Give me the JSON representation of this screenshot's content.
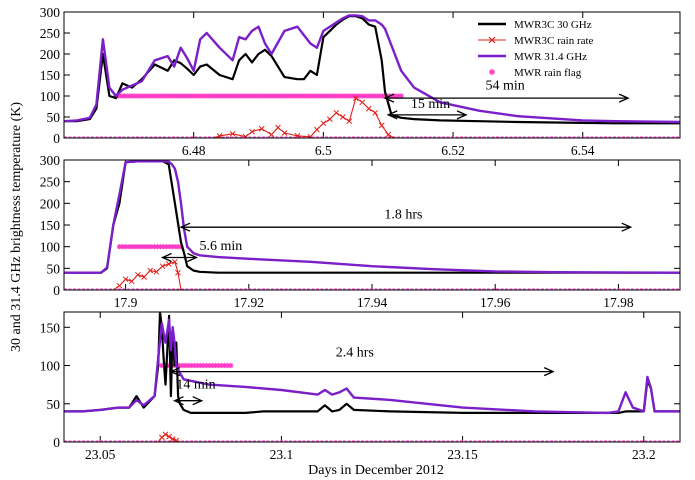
{
  "chart_data": {
    "type": "line",
    "ylabel": "30 and 31.4 GHz brightness temperature (K)",
    "xlabel": "Days in December 2012",
    "legend": {
      "placement": "top-right of top panel",
      "entries": [
        {
          "label": "MWR3C 30 GHz",
          "color": "#000000",
          "style": "line"
        },
        {
          "label": "MWR3C rain rate",
          "color": "#e0201a",
          "style": "x-marker line"
        },
        {
          "label": "MWR 31.4 GHz",
          "color": "#7a1fc9",
          "style": "line"
        },
        {
          "label": "MWR rain flag",
          "color": "#ff3cc8",
          "style": "star marker"
        }
      ]
    },
    "panels": [
      {
        "xlim": [
          6.46,
          6.555
        ],
        "ylim": [
          0,
          300
        ],
        "xticks": [
          "6.48",
          "6.5",
          "6.52",
          "6.54"
        ],
        "xtick_values": [
          6.48,
          6.5,
          6.52,
          6.54
        ],
        "yticks": [
          "0",
          "50",
          "100",
          "150",
          "200",
          "250",
          "300"
        ],
        "ytick_values": [
          0,
          50,
          100,
          150,
          200,
          250,
          300
        ],
        "series": [
          {
            "name": "MWR3C 30 GHz",
            "color": "#000000",
            "x": [
              6.46,
              6.462,
              6.464,
              6.465,
              6.466,
              6.467,
              6.468,
              6.469,
              6.4705,
              6.472,
              6.474,
              6.476,
              6.477,
              6.478,
              6.479,
              6.48,
              6.481,
              6.482,
              6.484,
              6.486,
              6.487,
              6.488,
              6.489,
              6.49,
              6.491,
              6.492,
              6.494,
              6.496,
              6.497,
              6.498,
              6.499,
              6.5,
              6.501,
              6.502,
              6.503,
              6.504,
              6.505,
              6.506,
              6.507,
              6.508,
              6.509,
              6.5095,
              6.5105,
              6.512,
              6.514,
              6.518,
              6.524,
              6.53,
              6.54,
              6.545,
              6.555
            ],
            "y": [
              40,
              40,
              45,
              70,
              200,
              100,
              95,
              130,
              120,
              140,
              175,
              160,
              185,
              178,
              165,
              150,
              170,
              175,
              150,
              140,
              185,
              200,
              180,
              200,
              210,
              195,
              145,
              140,
              140,
              160,
              150,
              240,
              255,
              270,
              282,
              290,
              290,
              285,
              270,
              265,
              185,
              110,
              55,
              48,
              45,
              42,
              40,
              38,
              36,
              35,
              35
            ]
          },
          {
            "name": "MWR 31.4 GHz",
            "color": "#7a1fc9",
            "x": [
              6.46,
              6.462,
              6.464,
              6.465,
              6.466,
              6.467,
              6.468,
              6.469,
              6.4705,
              6.472,
              6.474,
              6.476,
              6.477,
              6.478,
              6.479,
              6.48,
              6.481,
              6.482,
              6.484,
              6.486,
              6.487,
              6.488,
              6.489,
              6.49,
              6.491,
              6.492,
              6.494,
              6.496,
              6.497,
              6.498,
              6.499,
              6.5,
              6.501,
              6.502,
              6.503,
              6.504,
              6.505,
              6.506,
              6.507,
              6.508,
              6.509,
              6.5095,
              6.5105,
              6.512,
              6.514,
              6.518,
              6.524,
              6.53,
              6.54,
              6.545,
              6.555
            ],
            "y": [
              40,
              42,
              48,
              80,
              235,
              120,
              100,
              115,
              125,
              135,
              185,
              195,
              170,
              215,
              190,
              160,
              235,
              250,
              215,
              185,
              240,
              235,
              255,
              265,
              225,
              200,
              255,
              265,
              245,
              225,
              215,
              255,
              265,
              275,
              285,
              292,
              292,
              290,
              280,
              280,
              270,
              260,
              220,
              160,
              120,
              85,
              65,
              52,
              42,
              40,
              38
            ]
          },
          {
            "name": "MWR3C rain rate",
            "color": "#e0201a",
            "x": [
              6.46,
              6.483,
              6.484,
              6.486,
              6.488,
              6.489,
              6.4905,
              6.492,
              6.493,
              6.494,
              6.496,
              6.498,
              6.499,
              6.5,
              6.501,
              6.502,
              6.503,
              6.504,
              6.505,
              6.506,
              6.507,
              6.508,
              6.509,
              6.51,
              6.511,
              6.555
            ],
            "y": [
              0,
              0,
              5,
              10,
              3,
              15,
              22,
              8,
              25,
              12,
              5,
              3,
              20,
              35,
              45,
              60,
              50,
              40,
              95,
              85,
              70,
              60,
              30,
              8,
              0,
              0
            ]
          }
        ],
        "rain_flag": {
          "name": "MWR rain flag",
          "color": "#ff3cc8",
          "x_range": [
            6.468,
            6.512
          ],
          "y": 100
        },
        "annotations": [
          {
            "text": "54 min",
            "x_from": 6.5095,
            "x_to": 6.547,
            "y": 95,
            "text_x": 6.525,
            "text_y": 115
          },
          {
            "text": "15 min",
            "x_from": 6.51,
            "x_to": 6.522,
            "y": 55,
            "text_x": 6.5135,
            "text_y": 72
          }
        ]
      },
      {
        "xlim": [
          17.89,
          17.99
        ],
        "ylim": [
          0,
          300
        ],
        "xticks": [
          "17.9",
          "17.92",
          "17.94",
          "17.96",
          "17.98"
        ],
        "xtick_values": [
          17.9,
          17.92,
          17.94,
          17.96,
          17.98
        ],
        "yticks": [
          "0",
          "50",
          "100",
          "150",
          "200",
          "250",
          "300"
        ],
        "ytick_values": [
          0,
          50,
          100,
          150,
          200,
          250,
          300
        ],
        "series": [
          {
            "name": "MWR3C 30 GHz",
            "color": "#000000",
            "x": [
              17.89,
              17.896,
              17.897,
              17.898,
              17.899,
              17.9,
              17.902,
              17.906,
              17.907,
              17.908,
              17.909,
              17.9095,
              17.91,
              17.911,
              17.912,
              17.915,
              17.92,
              17.93,
              17.94,
              17.95,
              17.97,
              17.99
            ],
            "y": [
              40,
              40,
              50,
              150,
              200,
              295,
              297,
              297,
              290,
              200,
              110,
              85,
              55,
              45,
              42,
              40,
              40,
              40,
              40,
              40,
              40,
              40
            ]
          },
          {
            "name": "MWR 31.4 GHz",
            "color": "#7a1fc9",
            "x": [
              17.89,
              17.896,
              17.897,
              17.898,
              17.899,
              17.9,
              17.902,
              17.906,
              17.907,
              17.9075,
              17.908,
              17.9085,
              17.909,
              17.9095,
              17.91,
              17.911,
              17.912,
              17.915,
              17.92,
              17.93,
              17.94,
              17.95,
              17.96,
              17.97,
              17.99
            ],
            "y": [
              40,
              40,
              52,
              150,
              220,
              295,
              297,
              297,
              296,
              290,
              280,
              250,
              200,
              140,
              100,
              85,
              80,
              76,
              72,
              65,
              55,
              48,
              43,
              41,
              40
            ]
          },
          {
            "name": "MWR3C rain rate",
            "color": "#e0201a",
            "x": [
              17.89,
              17.898,
              17.899,
              17.9,
              17.901,
              17.902,
              17.903,
              17.904,
              17.905,
              17.906,
              17.907,
              17.908,
              17.9085,
              17.909,
              17.99
            ],
            "y": [
              0,
              0,
              10,
              25,
              20,
              35,
              30,
              45,
              42,
              55,
              60,
              65,
              40,
              0,
              0
            ]
          }
        ],
        "rain_flag": {
          "name": "MWR rain flag",
          "color": "#ff3cc8",
          "x_range": [
            17.899,
            17.909
          ],
          "y": 100
        },
        "annotations": [
          {
            "text": "1.8 hrs",
            "x_from": 17.909,
            "x_to": 17.982,
            "y": 145,
            "text_x": 17.942,
            "text_y": 165
          },
          {
            "text": "5.6 min",
            "x_from": 17.906,
            "x_to": 17.9115,
            "y": 75,
            "text_x": 17.912,
            "text_y": 92
          }
        ]
      },
      {
        "xlim": [
          23.04,
          23.21
        ],
        "ylim": [
          0,
          170
        ],
        "xticks": [
          "23.05",
          "23.1",
          "23.15",
          "23.2"
        ],
        "xtick_values": [
          23.05,
          23.1,
          23.15,
          23.2
        ],
        "yticks": [
          "0",
          "50",
          "100",
          "150"
        ],
        "ytick_values": [
          0,
          50,
          100,
          150
        ],
        "series": [
          {
            "name": "MWR3C 30 GHz",
            "color": "#000000",
            "x": [
              23.04,
              23.045,
              23.05,
              23.055,
              23.058,
              23.06,
              23.062,
              23.065,
              23.066,
              23.0665,
              23.067,
              23.0675,
              23.068,
              23.069,
              23.0695,
              23.07,
              23.0705,
              23.071,
              23.0715,
              23.072,
              23.073,
              23.075,
              23.08,
              23.09,
              23.095,
              23.1,
              23.11,
              23.112,
              23.114,
              23.116,
              23.118,
              23.12,
              23.13,
              23.15,
              23.17,
              23.19,
              23.193,
              23.195,
              23.197,
              23.2,
              23.201,
              23.202,
              23.203,
              23.21
            ],
            "y": [
              40,
              40,
              42,
              45,
              45,
              60,
              45,
              60,
              100,
              170,
              150,
              110,
              75,
              165,
              60,
              150,
              100,
              130,
              60,
              50,
              42,
              38,
              38,
              38,
              40,
              40,
              40,
              48,
              40,
              42,
              50,
              42,
              40,
              38,
              38,
              38,
              38,
              40,
              40,
              40,
              80,
              70,
              40,
              40
            ]
          },
          {
            "name": "MWR 31.4 GHz",
            "color": "#7a1fc9",
            "x": [
              23.04,
              23.045,
              23.05,
              23.055,
              23.058,
              23.06,
              23.062,
              23.065,
              23.066,
              23.067,
              23.068,
              23.069,
              23.0695,
              23.07,
              23.0705,
              23.071,
              23.072,
              23.073,
              23.075,
              23.08,
              23.09,
              23.1,
              23.11,
              23.112,
              23.114,
              23.116,
              23.118,
              23.12,
              23.13,
              23.15,
              23.17,
              23.19,
              23.193,
              23.195,
              23.197,
              23.2,
              23.201,
              23.202,
              23.203,
              23.21
            ],
            "y": [
              40,
              40,
              42,
              45,
              45,
              55,
              48,
              60,
              110,
              155,
              130,
              160,
              120,
              150,
              130,
              100,
              90,
              82,
              80,
              75,
              72,
              68,
              62,
              68,
              62,
              65,
              70,
              58,
              55,
              45,
              40,
              38,
              40,
              65,
              45,
              40,
              85,
              70,
              40,
              40
            ]
          },
          {
            "name": "MWR3C rain rate",
            "color": "#e0201a",
            "x": [
              23.04,
              23.066,
              23.067,
              23.068,
              23.069,
              23.07,
              23.071,
              23.072,
              23.21
            ],
            "y": [
              0,
              0,
              6,
              10,
              7,
              4,
              2,
              0,
              0
            ]
          }
        ],
        "rain_flag": {
          "name": "MWR rain flag",
          "color": "#ff3cc8",
          "x_range": [
            23.067,
            23.086
          ],
          "y": 100
        },
        "annotations": [
          {
            "text": "2.4 hrs",
            "x_from": 23.0695,
            "x_to": 23.175,
            "y": 92,
            "text_x": 23.115,
            "text_y": 112
          },
          {
            "text": "14 min",
            "x_from": 23.0705,
            "x_to": 23.078,
            "y": 54,
            "text_x": 23.071,
            "text_y": 70
          }
        ]
      }
    ]
  }
}
